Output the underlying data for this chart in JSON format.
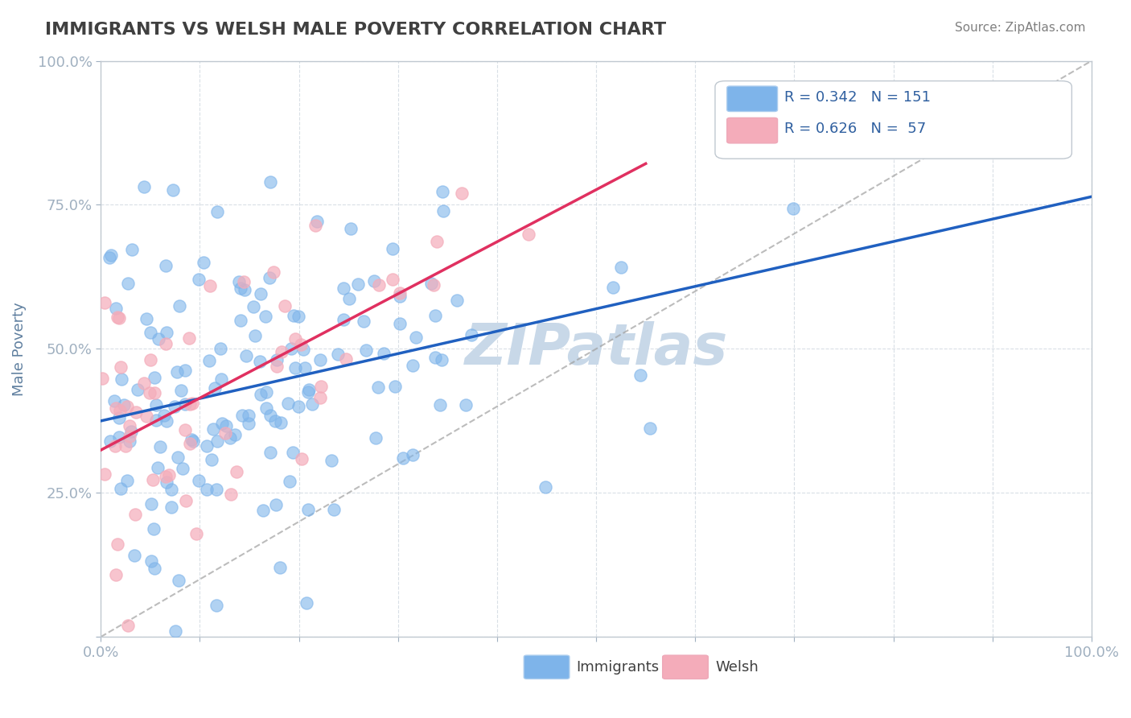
{
  "title": "IMMIGRANTS VS WELSH MALE POVERTY CORRELATION CHART",
  "source_text": "Source: ZipAtlas.com",
  "xlabel": "",
  "ylabel": "Male Poverty",
  "xlim": [
    0.0,
    1.0
  ],
  "ylim": [
    0.0,
    1.0
  ],
  "xtick_labels": [
    "0.0%",
    "100.0%"
  ],
  "ytick_labels": [
    "0.0%",
    "25.0%",
    "50.0%",
    "75.0%",
    "100.0%"
  ],
  "legend_r_blue": "R = 0.342",
  "legend_n_blue": "N = 151",
  "legend_r_pink": "R = 0.626",
  "legend_n_pink": "N =  57",
  "legend_label_blue": "Immigrants",
  "legend_label_pink": "Welsh",
  "blue_r": 0.342,
  "blue_n": 151,
  "pink_r": 0.626,
  "pink_n": 57,
  "blue_color": "#7EB4EA",
  "pink_color": "#F4ACBA",
  "blue_line_color": "#2060C0",
  "pink_line_color": "#E03060",
  "watermark": "ZIPatlas",
  "watermark_color": "#C8D8E8",
  "background_color": "#FFFFFF",
  "grid_color": "#D0D8E0",
  "title_color": "#404040",
  "axis_label_color": "#6080A0",
  "tick_label_color": "#6090B0"
}
